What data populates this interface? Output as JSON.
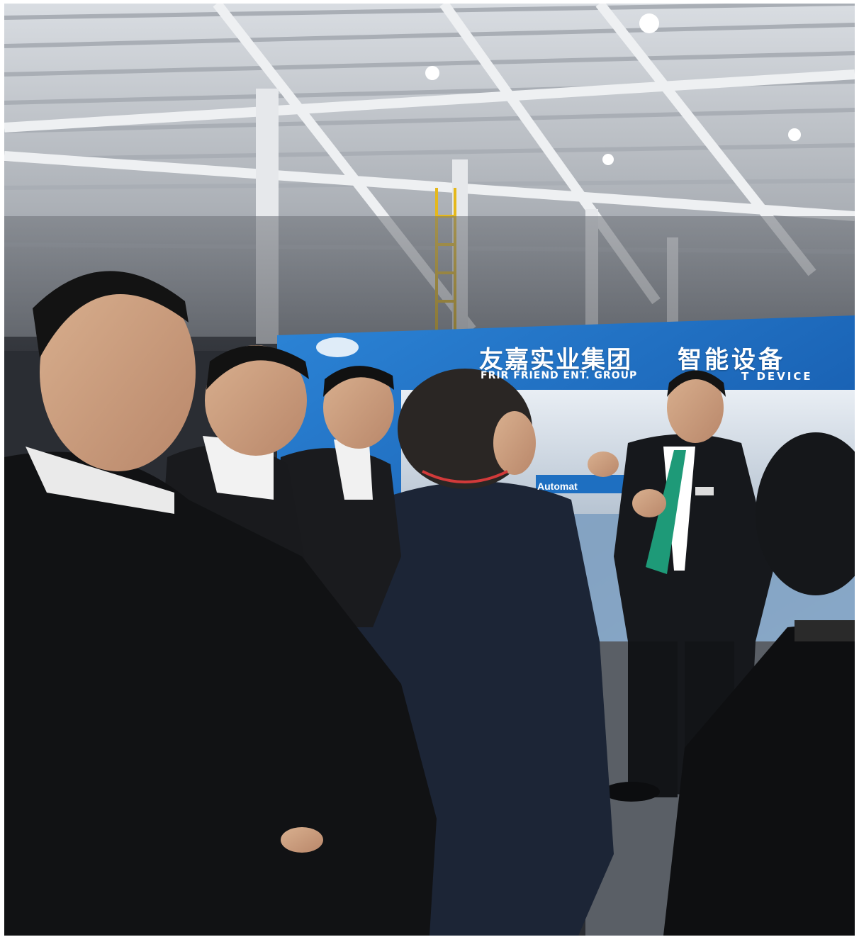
{
  "photo": {
    "subject": "Exhibition booth with a presenter speaking to a group of visitors in a large industrial hall",
    "colors": {
      "banner_blue": "#1f74c8",
      "ceiling": "#c9cdd3",
      "suit_dark": "#1b1d22",
      "tie_green": "#1e9a78"
    }
  },
  "banner": {
    "title_cn_1": "友嘉实业集团",
    "title_cn_2": "智能设备",
    "title_en_1": "FRIR FRIEND ENT. GROUP",
    "title_en_2": "T DEVICE",
    "panel_label": "Automat"
  }
}
